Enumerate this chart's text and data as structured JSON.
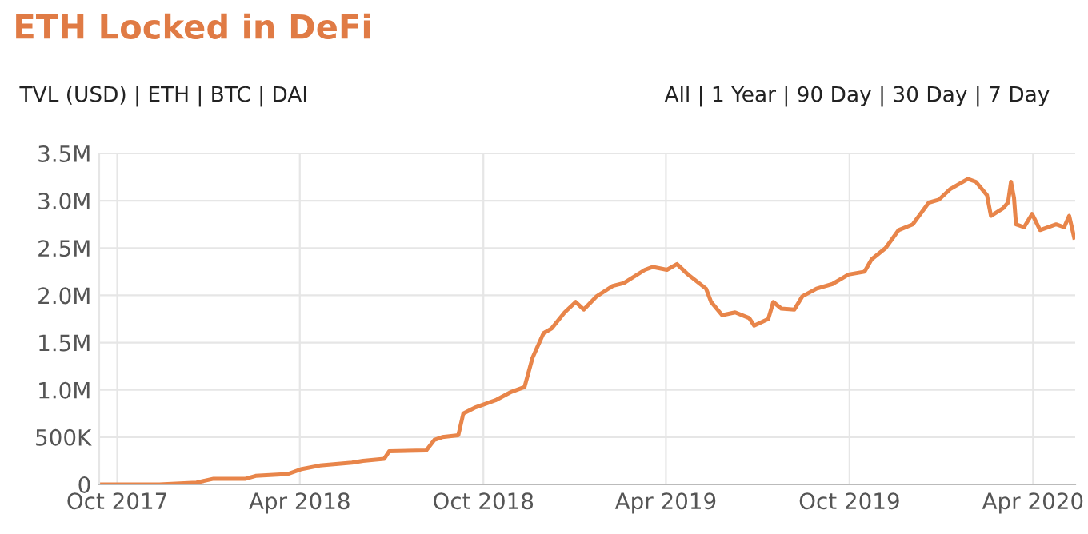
{
  "chart_data": {
    "type": "line",
    "title": "ETH Locked in DeFi",
    "annotations": [
      "TVL (USD) | ETH | BTC | DAI",
      "All | 1 Year | 90 Day | 30 Day | 7 Day"
    ],
    "x": [
      "2017-09-13",
      "2017-11-12",
      "2017-12-19",
      "2018-01-05",
      "2018-02-06",
      "2018-02-16",
      "2018-03-20",
      "2018-04-02",
      "2018-04-21",
      "2018-05-23",
      "2018-06-03",
      "2018-06-24",
      "2018-06-29",
      "2018-08-05",
      "2018-08-13",
      "2018-08-21",
      "2018-09-06",
      "2018-09-11",
      "2018-09-22",
      "2018-10-13",
      "2018-10-29",
      "2018-11-11",
      "2018-11-19",
      "2018-11-30",
      "2018-12-08",
      "2018-12-21",
      "2019-01-01",
      "2019-01-09",
      "2019-01-22",
      "2019-02-07",
      "2019-02-18",
      "2019-03-11",
      "2019-03-19",
      "2019-04-02",
      "2019-04-12",
      "2019-04-23",
      "2019-05-11",
      "2019-05-16",
      "2019-05-27",
      "2019-06-09",
      "2019-06-23",
      "2019-06-28",
      "2019-07-12",
      "2019-07-17",
      "2019-07-25",
      "2019-08-07",
      "2019-08-15",
      "2019-08-29",
      "2019-09-14",
      "2019-09-30",
      "2019-10-16",
      "2019-10-23",
      "2019-11-06",
      "2019-11-19",
      "2019-12-03",
      "2019-12-19",
      "2019-12-29",
      "2020-01-09",
      "2020-01-27",
      "2020-02-04",
      "2020-02-15",
      "2020-02-19",
      "2020-03-02",
      "2020-03-07",
      "2020-03-10",
      "2020-03-13",
      "2020-03-15",
      "2020-03-23",
      "2020-03-31",
      "2020-04-08",
      "2020-04-24",
      "2020-05-02",
      "2020-05-07",
      "2020-05-12"
    ],
    "series": [
      {
        "color": "#e8854a",
        "values": [
          0,
          0,
          20000,
          60000,
          60000,
          90000,
          110000,
          160000,
          200000,
          230000,
          250000,
          270000,
          350000,
          360000,
          470000,
          500000,
          520000,
          750000,
          810000,
          890000,
          980000,
          1030000,
          1340000,
          1600000,
          1650000,
          1820000,
          1930000,
          1850000,
          1990000,
          2100000,
          2130000,
          2270000,
          2300000,
          2270000,
          2330000,
          2220000,
          2070000,
          1930000,
          1790000,
          1820000,
          1760000,
          1680000,
          1750000,
          1930000,
          1860000,
          1850000,
          1990000,
          2070000,
          2120000,
          2220000,
          2250000,
          2380000,
          2500000,
          2690000,
          2750000,
          2980000,
          3010000,
          3120000,
          3230000,
          3200000,
          3060000,
          2840000,
          2920000,
          2980000,
          3200000,
          3030000,
          2750000,
          2720000,
          2860000,
          2690000,
          2750000,
          2720000,
          2840000,
          2610000
        ]
      }
    ],
    "xlim": [
      "2017-09-13",
      "2020-05-13"
    ],
    "xticks": [
      {
        "value": "2017-10-01",
        "label": "Oct 2017"
      },
      {
        "value": "2018-04-01",
        "label": "Apr 2018"
      },
      {
        "value": "2018-10-01",
        "label": "Oct 2018"
      },
      {
        "value": "2019-04-01",
        "label": "Apr 2019"
      },
      {
        "value": "2019-10-01",
        "label": "Oct 2019"
      },
      {
        "value": "2020-04-01",
        "label": "Apr 2020"
      }
    ],
    "ylim": [
      0,
      3500000
    ],
    "yticks": [
      0,
      {
        "value": 500000,
        "label": "500K"
      },
      {
        "value": 1000000,
        "label": "1.0M"
      },
      {
        "value": 1500000,
        "label": "1.5M"
      },
      {
        "value": 2000000,
        "label": "2.0M"
      },
      {
        "value": 2500000,
        "label": "2.5M"
      },
      {
        "value": 3000000,
        "label": "3.0M"
      },
      {
        "value": 3500000,
        "label": "3.5M"
      }
    ],
    "grid": true,
    "legend": false,
    "marker": "none",
    "line_style": "solid"
  }
}
